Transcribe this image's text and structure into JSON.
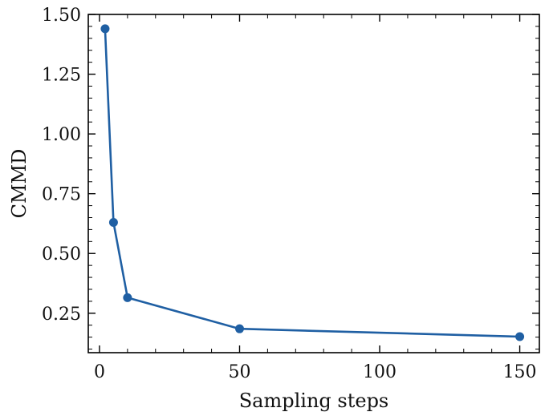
{
  "chart_data": {
    "type": "line",
    "xlabel": "Sampling steps",
    "ylabel": "CMMD",
    "xlim": [
      -4,
      157
    ],
    "ylim": [
      0.085,
      1.5
    ],
    "x_ticks": [
      0,
      50,
      100,
      150
    ],
    "y_ticks": [
      0.25,
      0.5,
      0.75,
      1.0,
      1.25,
      1.5
    ],
    "x_tick_labels": [
      "0",
      "50",
      "100",
      "150"
    ],
    "y_tick_labels": [
      "0.25",
      "0.50",
      "0.75",
      "1.00",
      "1.25",
      "1.50"
    ],
    "grid": false,
    "series": [
      {
        "x": [
          2,
          5,
          10,
          50,
          150
        ],
        "y": [
          1.44,
          0.63,
          0.315,
          0.185,
          0.152
        ],
        "color": "#1f5fa3"
      }
    ]
  }
}
